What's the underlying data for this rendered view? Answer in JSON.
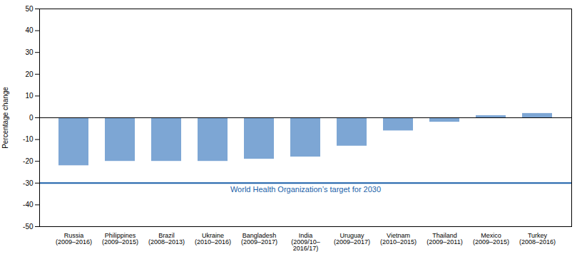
{
  "chart_data": {
    "type": "bar",
    "categories": [
      "Russia\n(2009–2016)",
      "Philippines\n(2009–2015)",
      "Brazil\n(2008–2013)",
      "Ukraine\n(2010–2016)",
      "Bangladesh\n(2009–2017)",
      "India\n(2009/10–\n2016/17)",
      "Uruguay\n(2009–2017)",
      "Vietnam\n(2010–2015)",
      "Thailand\n(2009–2011)",
      "Mexico\n(2009–2015)",
      "Turkey\n(2008–2016)"
    ],
    "values": [
      -22,
      -20,
      -20,
      -20,
      -19,
      -18,
      -13,
      -6,
      -2,
      1,
      2
    ],
    "color": "#7da6d4",
    "ylabel": "Percentage change",
    "ylim": [
      -50,
      50
    ],
    "yticks": [
      -50,
      -40,
      -30,
      -20,
      -10,
      0,
      10,
      20,
      30,
      40,
      50
    ],
    "grid": false,
    "reference_line": {
      "y": -30,
      "label": "World Health Organization’s target for 2030",
      "color": "#1a5fa8"
    }
  }
}
